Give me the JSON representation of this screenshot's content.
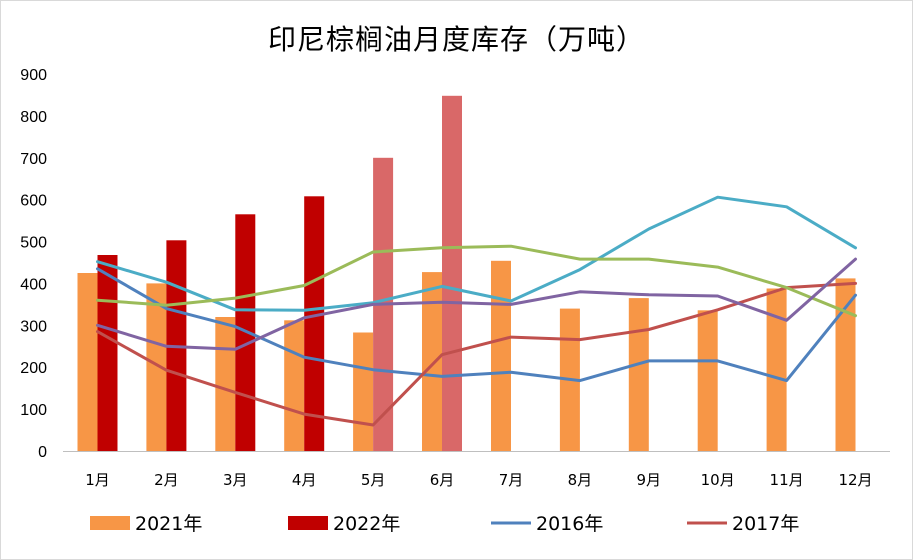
{
  "chart_data": {
    "type": "bar",
    "title": "印尼棕榈油月度库存（万吨）",
    "categories": [
      "1月",
      "2月",
      "3月",
      "4月",
      "5月",
      "6月",
      "7月",
      "8月",
      "9月",
      "10月",
      "11月",
      "12月"
    ],
    "ylim": [
      0,
      900
    ],
    "yticks": [
      0,
      100,
      200,
      300,
      400,
      500,
      600,
      700,
      800,
      900
    ],
    "grid": false,
    "legend_position": "bottom",
    "series": [
      {
        "name": "2021年",
        "kind": "bar",
        "color": "#f79646",
        "values": [
          425,
          400,
          320,
          312,
          283,
          427,
          454,
          340,
          365,
          336,
          388,
          412
        ]
      },
      {
        "name": "2022年",
        "kind": "bar",
        "color": "#c00000",
        "values": [
          468,
          503,
          565,
          608,
          700,
          848,
          null,
          null,
          null,
          null,
          null,
          null
        ],
        "light_from_index": 4,
        "light_color": "#d96868"
      },
      {
        "name": "2016年",
        "kind": "line",
        "color": "#4f81bd",
        "values": [
          435,
          340,
          297,
          224,
          194,
          178,
          188,
          168,
          215,
          215,
          168,
          372
        ]
      },
      {
        "name": "2017年",
        "kind": "line",
        "color": "#c0504d",
        "values": [
          285,
          193,
          140,
          88,
          62,
          230,
          272,
          266,
          290,
          337,
          390,
          400
        ]
      },
      {
        "name": "",
        "kind": "line",
        "color": "#4bacc6",
        "values": [
          452,
          403,
          337,
          336,
          354,
          393,
          358,
          433,
          530,
          606,
          583,
          485
        ]
      },
      {
        "name": "",
        "kind": "line",
        "color": "#9bbb59",
        "values": [
          360,
          348,
          365,
          395,
          475,
          485,
          489,
          458,
          458,
          439,
          390,
          323
        ]
      },
      {
        "name": "",
        "kind": "line",
        "color": "#8064a2",
        "values": [
          300,
          250,
          243,
          318,
          350,
          355,
          350,
          380,
          373,
          370,
          312,
          458
        ]
      }
    ]
  }
}
